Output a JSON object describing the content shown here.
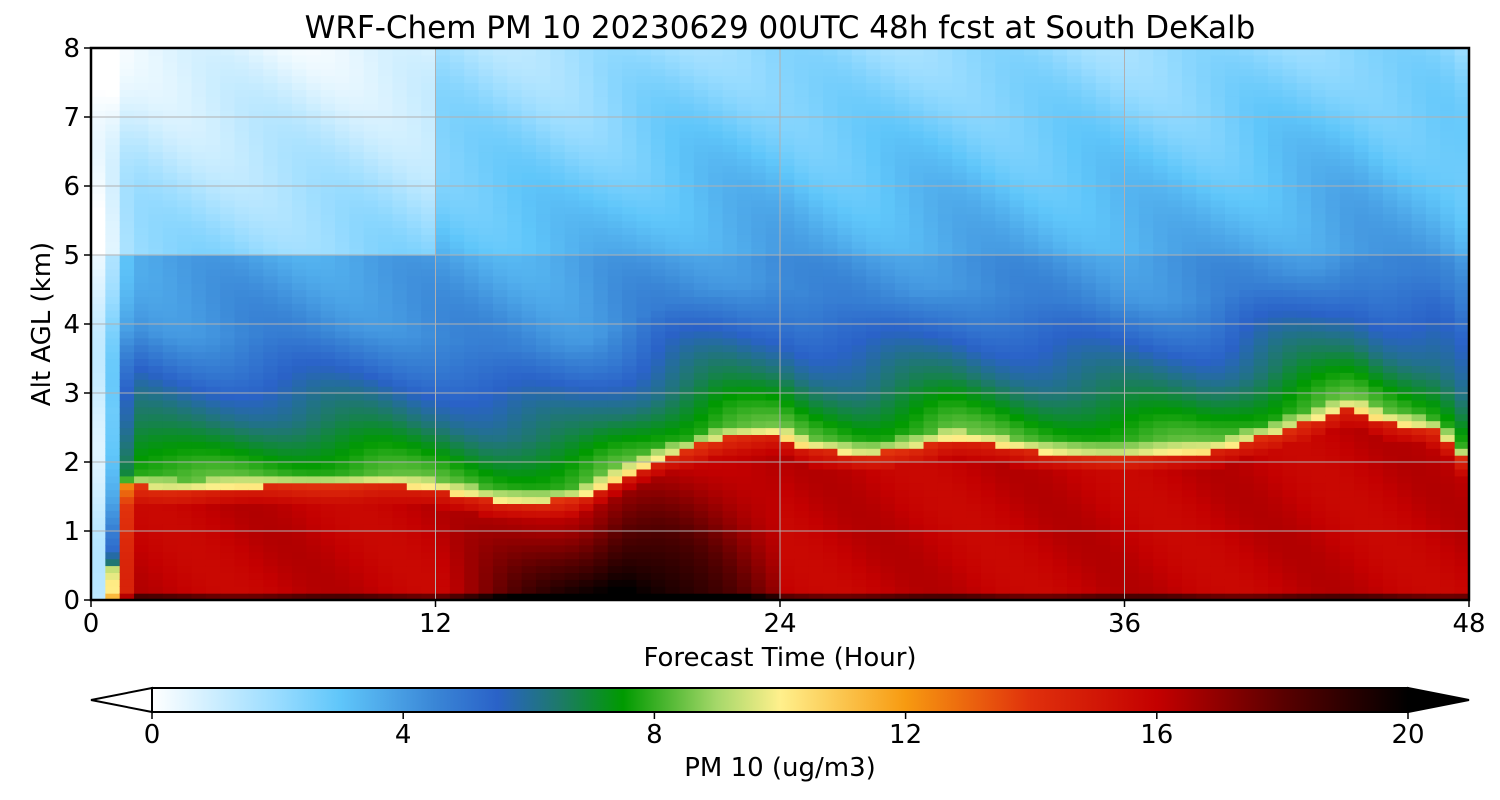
{
  "chart_data": {
    "type": "heatmap",
    "title": "WRF-Chem PM 10  20230629 00UTC 48h fcst at South DeKalb",
    "xlabel": "Forecast Time (Hour)",
    "ylabel": "Alt AGL (km)",
    "xlim": [
      0,
      48
    ],
    "ylim": [
      0,
      8
    ],
    "x_ticks": [
      "0",
      "12",
      "24",
      "36",
      "48"
    ],
    "y_ticks": [
      "0",
      "1",
      "2",
      "3",
      "4",
      "5",
      "6",
      "7",
      "8"
    ],
    "grid": true,
    "colorbar": {
      "label": "PM 10  (ug/m3)",
      "range": [
        0,
        20
      ],
      "ticks": [
        "0",
        "4",
        "8",
        "12",
        "16",
        "20"
      ],
      "extend": "both",
      "stops": [
        {
          "v": 0,
          "c": "#ffffff"
        },
        {
          "v": 2,
          "c": "#99dcff"
        },
        {
          "v": 3,
          "c": "#5fc6fa"
        },
        {
          "v": 4.5,
          "c": "#3a86d6"
        },
        {
          "v": 5.5,
          "c": "#2a62c8"
        },
        {
          "v": 6.5,
          "c": "#1d7a68"
        },
        {
          "v": 7.5,
          "c": "#009a00"
        },
        {
          "v": 9,
          "c": "#a6d86a"
        },
        {
          "v": 10,
          "c": "#fff08c"
        },
        {
          "v": 12,
          "c": "#f79a10"
        },
        {
          "v": 14,
          "c": "#e0300c"
        },
        {
          "v": 16,
          "c": "#c40000"
        },
        {
          "v": 18,
          "c": "#5a0000"
        },
        {
          "v": 20,
          "c": "#000000"
        }
      ]
    },
    "field": {
      "hours": [
        0,
        0.3,
        0.7,
        1,
        2,
        3,
        4,
        6,
        8,
        10,
        12,
        14,
        16,
        17,
        18,
        20,
        22,
        24,
        25,
        27,
        30,
        33,
        36,
        39,
        42,
        44,
        45,
        47,
        48
      ],
      "alt_km": [
        0,
        0.2,
        0.5,
        1,
        1.5,
        2,
        2.5,
        3,
        3.5,
        4,
        5,
        6,
        7,
        8
      ],
      "boundary_layer_top_km": [
        0,
        0,
        0.3,
        1.7,
        1.65,
        1.6,
        1.6,
        1.65,
        1.68,
        1.7,
        1.6,
        1.45,
        1.45,
        1.5,
        1.7,
        2.1,
        2.35,
        2.4,
        2.2,
        2.1,
        2.35,
        2.15,
        2.1,
        2.15,
        2.55,
        2.8,
        2.6,
        2.45,
        1.95
      ]
    }
  }
}
